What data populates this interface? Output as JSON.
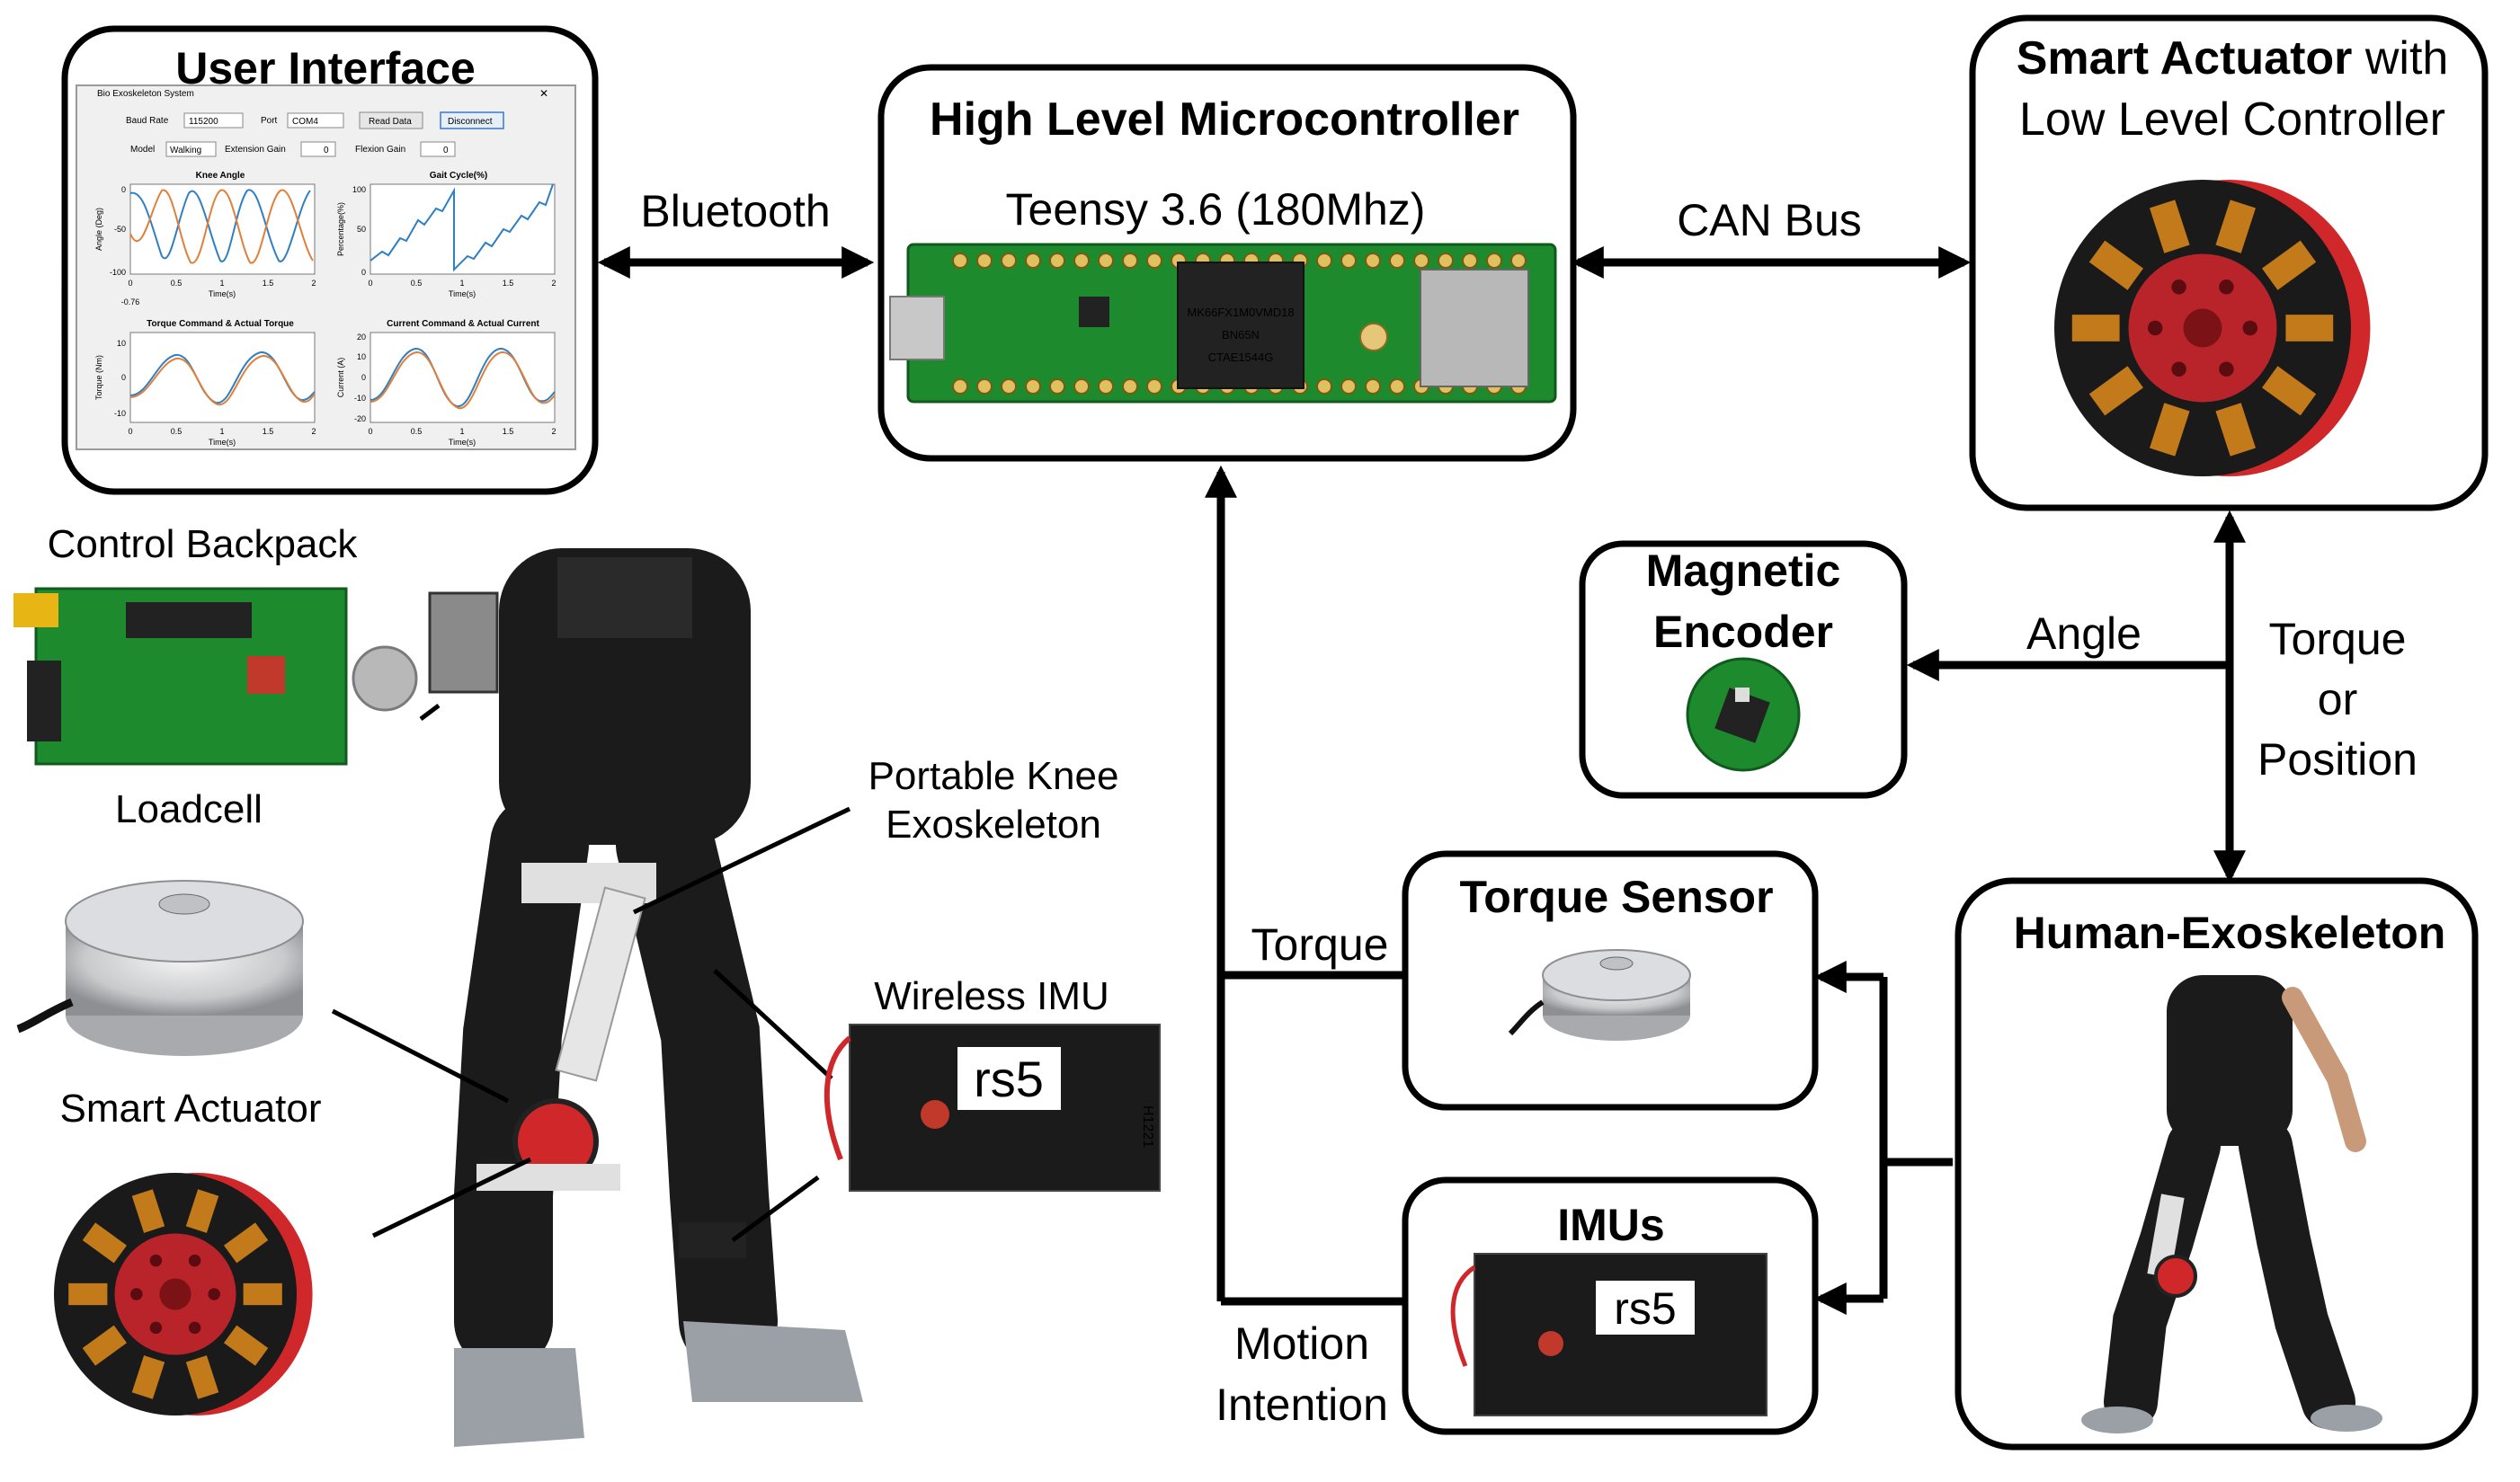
{
  "boxes": {
    "user_interface": {
      "title": "User Interface"
    },
    "microcontroller": {
      "title": "High Level Microcontroller",
      "subtitle": "Teensy 3.6 (180Mhz)"
    },
    "smart_actuator": {
      "title_bold": "Smart Actuator",
      "title_rest": " with",
      "title_line2": "Low Level Controller"
    },
    "magnetic_encoder": {
      "line1": "Magnetic",
      "line2": "Encoder"
    },
    "torque_sensor": {
      "title": "Torque Sensor"
    },
    "imus": {
      "title": "IMUs"
    },
    "human_exoskeleton": {
      "title": "Human-Exoskeleton"
    }
  },
  "connections": {
    "bluetooth": "Bluetooth",
    "can_bus": "CAN Bus",
    "angle": "Angle",
    "torque_or_position": [
      "Torque",
      "or",
      "Position"
    ],
    "torque": "Torque",
    "motion_intention": [
      "Motion",
      "Intention"
    ]
  },
  "labels": {
    "control_backpack": "Control Backpack",
    "loadcell": "Loadcell",
    "smart_actuator": "Smart Actuator",
    "portable_knee_exoskeleton": [
      "Portable Knee",
      "Exoskeleton"
    ],
    "wireless_imu": "Wireless IMU"
  },
  "gui": {
    "window_title": "Bio Exoskeleton System",
    "baud_label": "Baud Rate",
    "baud_value": "115200",
    "port_label": "Port",
    "port_value": "COM4",
    "read_button": "Read Data",
    "disconnect_button": "Disconnect",
    "model_label": "Model",
    "model_value": "Walking",
    "ext_gain_label": "Extension Gain",
    "ext_gain_value": "0",
    "flex_gain_label": "Flexion Gain",
    "flex_gain_value": "0",
    "plot1": {
      "title": "Knee Angle",
      "ylabel": "Angle (Deg)",
      "xlabel": "Time(s)",
      "yticks": [
        "0",
        "-50",
        "-100"
      ],
      "xticks": [
        "0",
        "0.5",
        "1",
        "1.5",
        "2"
      ],
      "extra": "-0.76"
    },
    "plot2": {
      "title": "Gait Cycle(%)",
      "ylabel": "Percentage(%)",
      "xlabel": "Time(s)",
      "yticks": [
        "100",
        "50",
        "0"
      ],
      "xticks": [
        "0",
        "0.5",
        "1",
        "1.5",
        "2"
      ]
    },
    "plot3": {
      "title": "Torque Command & Actual Torque",
      "ylabel": "Torque (Nm)",
      "xlabel": "Time(s)",
      "yticks": [
        "10",
        "0",
        "-10"
      ],
      "xticks": [
        "0",
        "0.5",
        "1",
        "1.5",
        "2"
      ]
    },
    "plot4": {
      "title": "Current Command & Actual Current",
      "ylabel": "Current (A)",
      "xlabel": "Time(s)",
      "yticks": [
        "20",
        "10",
        "0",
        "-10",
        "-20"
      ],
      "xticks": [
        "0",
        "0.5",
        "1",
        "1.5",
        "2"
      ]
    }
  },
  "chip": {
    "line1": "MK66FX1M0VMD18",
    "line2": "BN65N",
    "line3": "CTAE1544G"
  },
  "imu_board_text": "rs5",
  "imu_board_code": "H1221",
  "colors": {
    "pcb": "#1e8a2e",
    "actuator_red": "#d0282a",
    "actuator_dark": "#1a1a1a",
    "plot_blue": "#2f7fc4",
    "plot_orange": "#e0803a"
  }
}
